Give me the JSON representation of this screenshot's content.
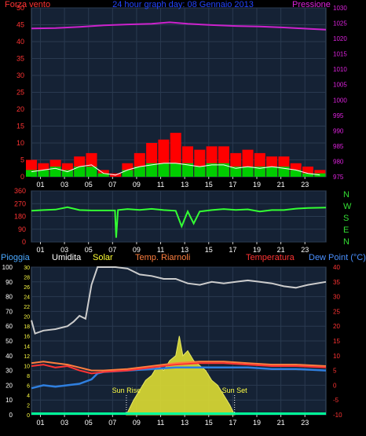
{
  "chart_data": [
    {
      "id": "wind_pressure",
      "type": "line",
      "title": "24 hour graph day: 08 Gennaio 2013",
      "left_label": "Forza vento",
      "right_label": "Pressione",
      "ylim_left": [
        0,
        50
      ],
      "yticks_left": [
        0,
        5,
        10,
        15,
        20,
        25,
        30,
        35,
        40,
        45,
        50
      ],
      "ylim_right": [
        975,
        1030
      ],
      "yticks_right": [
        975,
        980,
        985,
        990,
        995,
        1000,
        1005,
        1010,
        1015,
        1020,
        1025,
        1030
      ],
      "x_ticks": [
        "01",
        "03",
        "05",
        "07",
        "09",
        "11",
        "13",
        "15",
        "17",
        "19",
        "21",
        "23"
      ],
      "grid": true,
      "series": [
        {
          "name": "Pressione",
          "color": "#cc22cc",
          "axis": "right",
          "x": [
            0,
            2,
            4,
            6,
            8,
            10,
            11.5,
            13,
            15,
            17,
            19,
            21,
            23,
            24.5
          ],
          "y": [
            1023.3,
            1023.4,
            1023.8,
            1024.3,
            1024.6,
            1024.8,
            1025.3,
            1024.8,
            1024.4,
            1024.1,
            1023.9,
            1023.6,
            1023.2,
            1022.9
          ]
        },
        {
          "name": "Raffica",
          "color": "#ff0000",
          "axis": "left",
          "style": "bars",
          "x": [
            0,
            1,
            2,
            3,
            4,
            5,
            6,
            7,
            8,
            9,
            10,
            11,
            12,
            13,
            14,
            15,
            16,
            17,
            18,
            19,
            20,
            21,
            22,
            23,
            24
          ],
          "y": [
            5,
            4,
            5,
            4,
            6,
            7,
            2,
            1,
            4,
            7,
            10,
            11,
            13,
            9,
            8,
            9,
            9,
            7,
            8,
            7,
            6,
            6,
            4,
            3,
            2
          ]
        },
        {
          "name": "Vento medio",
          "color": "#00cc00",
          "axis": "left",
          "style": "bars",
          "x": [
            0,
            1,
            2,
            3,
            4,
            5,
            6,
            7,
            8,
            9,
            10,
            11,
            12,
            13,
            14,
            15,
            16,
            17,
            18,
            19,
            20,
            21,
            22,
            23,
            24
          ],
          "y": [
            2,
            2,
            3,
            2,
            3,
            3,
            1,
            0,
            2,
            3,
            4,
            4,
            4,
            4,
            3,
            4,
            4,
            3,
            3,
            3,
            3,
            3,
            2,
            1,
            1
          ]
        },
        {
          "name": "Vento medio (linea)",
          "color": "#ffffff",
          "axis": "left",
          "x": [
            0,
            1,
            2,
            3,
            4,
            5,
            6,
            7,
            8,
            9,
            10,
            11,
            12,
            13,
            14,
            15,
            16,
            17,
            18,
            19,
            20,
            21,
            22,
            23,
            24
          ],
          "y": [
            1.5,
            2,
            2.5,
            1.5,
            3,
            3.5,
            1,
            0.5,
            2,
            3,
            3.5,
            4,
            4,
            3.5,
            3,
            3.5,
            3.5,
            2.5,
            3,
            2.5,
            3,
            2.5,
            2,
            1,
            0.5
          ]
        }
      ]
    },
    {
      "id": "wind_direction",
      "type": "line",
      "ylim": [
        0,
        360
      ],
      "yticks": [
        0,
        90,
        180,
        270,
        360
      ],
      "right_labels": [
        "N",
        "W",
        "S",
        "E",
        "N"
      ],
      "x_ticks": [
        "01",
        "03",
        "05",
        "07",
        "09",
        "11",
        "13",
        "15",
        "17",
        "19",
        "21",
        "23"
      ],
      "grid": true,
      "series": [
        {
          "name": "Direzione",
          "color": "#33ff33",
          "x": [
            0,
            1,
            2,
            3,
            4,
            5,
            6,
            6.95,
            7.05,
            7.2,
            8,
            9,
            10,
            11,
            12,
            12.5,
            13,
            13.5,
            14,
            15,
            16,
            17,
            18,
            19,
            20,
            21,
            22,
            23,
            24.5
          ],
          "y": [
            220,
            225,
            228,
            245,
            225,
            222,
            222,
            222,
            30,
            225,
            232,
            226,
            233,
            225,
            220,
            110,
            215,
            130,
            215,
            225,
            232,
            226,
            230,
            215,
            225,
            225,
            235,
            240,
            242
          ]
        }
      ]
    },
    {
      "id": "temperature",
      "type": "line",
      "labels": [
        "Pioggia",
        "Umidita",
        "Solar",
        "Temp. Riarnoli",
        "Temperatura",
        "Dew Point (°C)"
      ],
      "label_colors": [
        "#4aa8ff",
        "#ffffff",
        "#ffff33",
        "#ff7f3f",
        "#ff3333",
        "#4a90ff"
      ],
      "ylim_left": [
        0,
        100
      ],
      "yticks_left": [
        0,
        10,
        20,
        30,
        40,
        50,
        60,
        70,
        80,
        90,
        100
      ],
      "ylim_mid": [
        0,
        30
      ],
      "yticks_mid": [
        0,
        2,
        4,
        6,
        8,
        10,
        12,
        14,
        16,
        18,
        20,
        22,
        24,
        26,
        28,
        30
      ],
      "ylim_right": [
        -10,
        40
      ],
      "yticks_right": [
        -10,
        -5,
        0,
        5,
        10,
        15,
        20,
        25,
        30,
        35,
        40
      ],
      "x_ticks": [
        "01",
        "03",
        "05",
        "07",
        "09",
        "11",
        "13",
        "15",
        "17",
        "19",
        "21",
        "23"
      ],
      "annotations": [
        {
          "label": "Sun Rise",
          "x": 7.9
        },
        {
          "label": "Sun Set",
          "x": 16.9
        }
      ],
      "grid": true,
      "series": [
        {
          "name": "Umidita",
          "color": "#cccccc",
          "axis": "left",
          "x": [
            0,
            0.3,
            1,
            2,
            3,
            3.5,
            4,
            4.5,
            5,
            5.5,
            6,
            7,
            8,
            9,
            10,
            11,
            12,
            13,
            14,
            15,
            16,
            17,
            18,
            19,
            20,
            21,
            22,
            23,
            24.5
          ],
          "y": [
            64,
            55,
            57,
            58,
            60,
            63,
            67,
            65,
            88,
            100,
            100,
            100,
            99,
            95,
            94,
            92,
            92,
            89,
            88,
            90,
            89,
            90,
            91,
            90,
            89,
            87,
            86,
            88,
            90
          ]
        },
        {
          "name": "Temperatura",
          "color": "#ff3333",
          "axis": "right",
          "x": [
            0,
            1,
            2,
            3,
            4,
            5,
            6,
            8,
            10,
            12,
            14,
            16,
            18,
            20,
            22,
            24.5
          ],
          "y": [
            6.5,
            7,
            6,
            6.5,
            5,
            4,
            4.5,
            5,
            6,
            7,
            7.5,
            7.5,
            7,
            6.5,
            6.5,
            6
          ]
        },
        {
          "name": "Temp. Riarnoli",
          "color": "#ff7f3f",
          "axis": "right",
          "x": [
            0,
            1,
            2,
            3,
            4,
            5,
            6,
            8,
            10,
            12,
            14,
            16,
            18,
            20,
            22,
            24.5
          ],
          "y": [
            7.5,
            8,
            7.5,
            7,
            6,
            5,
            5,
            5.5,
            6.5,
            7.5,
            8,
            8,
            7.5,
            7,
            7,
            6.5
          ]
        },
        {
          "name": "Dew Point (°C)",
          "color": "#2f7fdf",
          "axis": "right",
          "x": [
            0,
            1,
            2,
            3,
            4,
            5,
            5.5,
            6,
            8,
            10,
            12,
            14,
            16,
            18,
            20,
            22,
            24.5
          ],
          "y": [
            -1,
            0,
            -0.5,
            0,
            0.5,
            2,
            4,
            4.5,
            5,
            5.5,
            6,
            6,
            6,
            6,
            5.5,
            5.5,
            5
          ]
        },
        {
          "name": "Solar",
          "color": "#dddd33",
          "axis": "left",
          "style": "area",
          "x": [
            7.9,
            8.5,
            9,
            9.5,
            10,
            10.5,
            11,
            11.5,
            12,
            12.3,
            12.6,
            13,
            13.5,
            14,
            14.5,
            15,
            15.5,
            16,
            16.5,
            16.9
          ],
          "y": [
            0,
            3,
            5,
            7,
            8,
            10,
            9,
            11,
            12,
            16,
            12,
            13,
            11,
            10,
            9,
            7,
            6,
            4,
            2,
            0
          ]
        },
        {
          "name": "Pioggia",
          "color": "#00ff99",
          "axis": "left",
          "x": [
            0,
            24.5
          ],
          "y": [
            0.3,
            0.3
          ]
        }
      ]
    }
  ]
}
